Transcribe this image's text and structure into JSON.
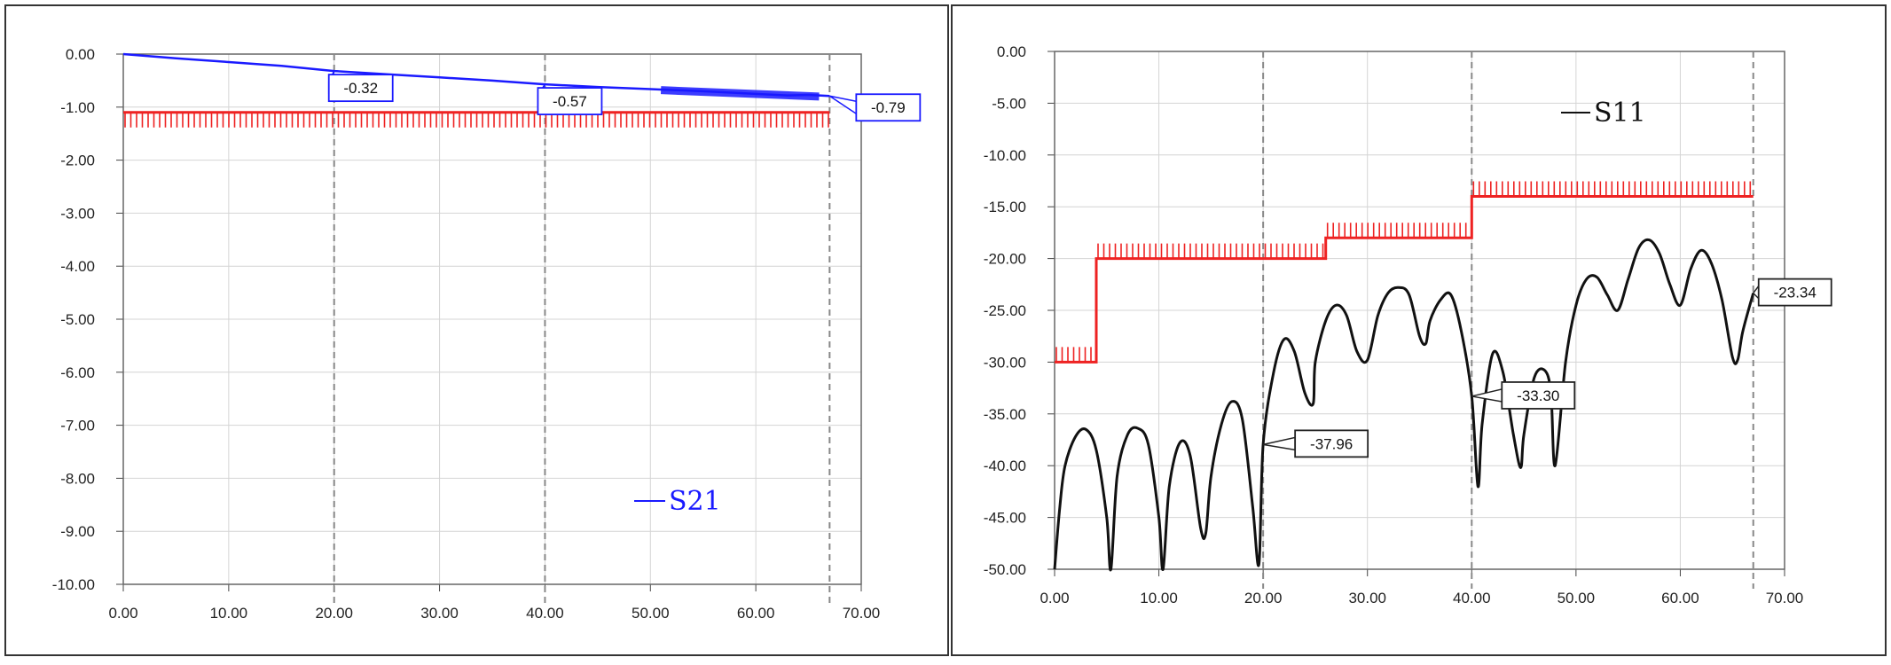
{
  "chart_data": [
    {
      "type": "line",
      "title": "",
      "xlabel": "",
      "ylabel": "",
      "xlim": [
        0,
        70
      ],
      "ylim": [
        -10,
        0
      ],
      "x_ticks": [
        "0.00",
        "10.00",
        "20.00",
        "30.00",
        "40.00",
        "50.00",
        "60.00",
        "70.00"
      ],
      "y_ticks": [
        "0.00",
        "-1.00",
        "-2.00",
        "-3.00",
        "-4.00",
        "-5.00",
        "-6.00",
        "-7.00",
        "-8.00",
        "-9.00",
        "-10.00"
      ],
      "grid": true,
      "legend": {
        "position": "bottom-right"
      },
      "colors": {
        "series": "#1a1aff",
        "limit": "#ee2222"
      },
      "series": [
        {
          "name": "S21",
          "x": [
            0,
            5,
            10,
            15,
            20,
            25,
            30,
            35,
            40,
            45,
            50,
            55,
            60,
            63,
            65,
            67
          ],
          "y": [
            0,
            -0.08,
            -0.15,
            -0.22,
            -0.32,
            -0.38,
            -0.44,
            -0.5,
            -0.57,
            -0.62,
            -0.66,
            -0.7,
            -0.75,
            -0.78,
            -0.77,
            -0.79
          ]
        }
      ],
      "limit_line": {
        "x": [
          0,
          67
        ],
        "y": [
          -1.1,
          -1.1
        ]
      },
      "vertical_markers": [
        20,
        40,
        67
      ],
      "marker_labels": [
        {
          "x": 20,
          "y": -0.32,
          "text": "-0.32"
        },
        {
          "x": 40,
          "y": -0.57,
          "text": "-0.57"
        },
        {
          "x": 67,
          "y": -0.79,
          "text": "-0.79"
        }
      ]
    },
    {
      "type": "line",
      "title": "",
      "xlabel": "",
      "ylabel": "",
      "xlim": [
        0,
        70
      ],
      "ylim": [
        -50,
        0
      ],
      "x_ticks": [
        "0.00",
        "10.00",
        "20.00",
        "30.00",
        "40.00",
        "50.00",
        "60.00",
        "70.00"
      ],
      "y_ticks": [
        "0.00",
        "-5.00",
        "-10.00",
        "-15.00",
        "-20.00",
        "-25.00",
        "-30.00",
        "-35.00",
        "-40.00",
        "-45.00",
        "-50.00"
      ],
      "grid": true,
      "legend": {
        "position": "top-right"
      },
      "colors": {
        "series": "#111111",
        "limit": "#ee2222"
      },
      "series": [
        {
          "name": "S11",
          "x": [
            0,
            0.5,
            1,
            2,
            3,
            4,
            5,
            5.4,
            6,
            7,
            8,
            9,
            10,
            10.4,
            11,
            12,
            13,
            14,
            14.5,
            15,
            16,
            17,
            18,
            19,
            19.6,
            20,
            21,
            22,
            23,
            24,
            24.8,
            25,
            26,
            27,
            28,
            29,
            30,
            31,
            32,
            33,
            34,
            35,
            35.6,
            36,
            37,
            38,
            39,
            40,
            40.6,
            41,
            42,
            43,
            44,
            44.7,
            45,
            46,
            47,
            47.6,
            48,
            49,
            50,
            51,
            52,
            53,
            54,
            55,
            56,
            57,
            58,
            59,
            60,
            61,
            62,
            63,
            64,
            65,
            65.5,
            66,
            67
          ],
          "y": [
            -50,
            -44,
            -40,
            -37.2,
            -36.5,
            -38.5,
            -45,
            -50,
            -41,
            -37,
            -36.4,
            -38,
            -45,
            -50,
            -42,
            -37.8,
            -39,
            -46,
            -46.5,
            -41,
            -36,
            -33.8,
            -35.5,
            -44,
            -49.5,
            -37.96,
            -31,
            -27.8,
            -29,
            -33,
            -34,
            -30,
            -26,
            -24.5,
            -25.5,
            -29,
            -29.8,
            -25.5,
            -23.3,
            -22.8,
            -23.5,
            -27.5,
            -28.2,
            -26,
            -24,
            -23.5,
            -27,
            -33.3,
            -42,
            -36,
            -29.2,
            -31,
            -37,
            -40.2,
            -37,
            -31.5,
            -30.8,
            -33,
            -40,
            -30,
            -24.5,
            -22,
            -21.8,
            -23.5,
            -25,
            -22,
            -19,
            -18.2,
            -19.5,
            -22.5,
            -24.5,
            -21,
            -19.2,
            -20.5,
            -24,
            -29.5,
            -29.8,
            -27,
            -23.34
          ]
        }
      ],
      "limit_line": {
        "x": [
          0,
          4,
          4,
          26,
          26,
          40,
          40,
          67
        ],
        "y": [
          -30,
          -30,
          -20,
          -20,
          -18,
          -18,
          -14,
          -14
        ]
      },
      "vertical_markers": [
        20,
        40,
        67
      ],
      "marker_labels": [
        {
          "x": 20,
          "y": -37.96,
          "text": "-37.96"
        },
        {
          "x": 40,
          "y": -33.3,
          "text": "-33.30"
        },
        {
          "x": 67,
          "y": -23.34,
          "text": "-23.34"
        }
      ]
    }
  ]
}
